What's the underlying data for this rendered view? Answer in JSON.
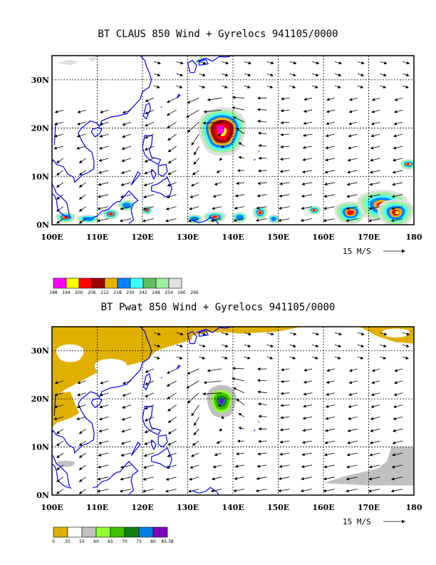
{
  "chart_data": [
    {
      "type": "map",
      "title": "BT CLAUS 850 Wind + Gyrelocs 941105/0000",
      "xlim": [
        100,
        180
      ],
      "ylim": [
        0,
        35
      ],
      "x_ticks": [
        "100E",
        "110E",
        "120E",
        "130E",
        "140E",
        "150E",
        "160E",
        "170E",
        "180"
      ],
      "y_ticks": [
        "0N",
        "10N",
        "20N",
        "30N"
      ],
      "reference_vector": "15 M/S",
      "gyre_center": {
        "lon": 137.3,
        "lat": 19.5
      },
      "colorbar": {
        "labels": [
          "188",
          "194",
          "200",
          "206",
          "212",
          "218",
          "230",
          "242",
          "248",
          "254",
          "260",
          "266"
        ],
        "colors": [
          "#ff00ff",
          "#ffff00",
          "#ff0000",
          "#a00000",
          "#e8b400",
          "#0080ff",
          "#40ffff",
          "#60c060",
          "#a0f0a0",
          "#e0e0e0"
        ]
      }
    },
    {
      "type": "map",
      "title": "BT Pwat 850 Wind + Gyrelocs 941105/0000",
      "xlim": [
        100,
        180
      ],
      "ylim": [
        0,
        35
      ],
      "x_ticks": [
        "100E",
        "110E",
        "120E",
        "130E",
        "140E",
        "150E",
        "160E",
        "170E",
        "180"
      ],
      "y_ticks": [
        "0N",
        "10N",
        "20N",
        "30N"
      ],
      "reference_vector": "15 M/S",
      "gyre_center": {
        "lon": 137.3,
        "lat": 19.5
      },
      "colorbar": {
        "labels": [
          "0",
          "35",
          "55",
          "60",
          "65",
          "70",
          "75",
          "80",
          "85.38"
        ],
        "colors": [
          "#e0b000",
          "#ffffff",
          "#c0c0c0",
          "#90ff30",
          "#40c000",
          "#108010",
          "#0080e0",
          "#8000c0"
        ]
      }
    }
  ]
}
